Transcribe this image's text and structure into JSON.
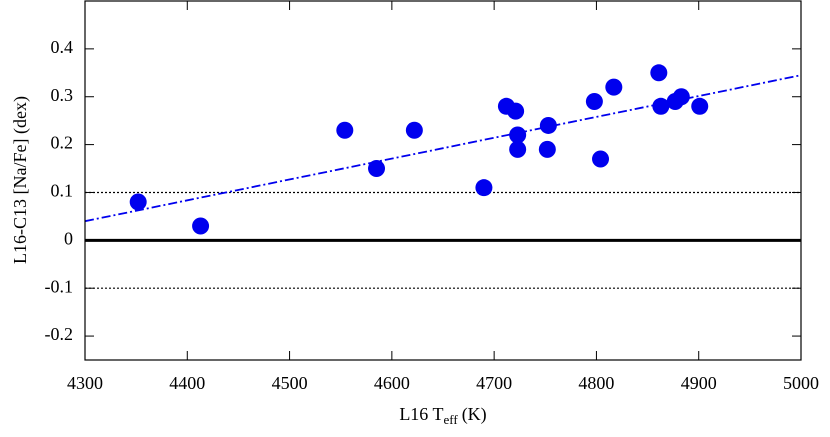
{
  "chart_data": {
    "type": "scatter",
    "x_label": {
      "prefix": "L16 T",
      "sub": "eff",
      "suffix": "(K)"
    },
    "y_label": "L16-C13 [Na/Fe] (dex)",
    "x": [
      4352,
      4413,
      4554,
      4585,
      4622,
      4690,
      4712,
      4721,
      4723,
      4723,
      4752,
      4753,
      4798,
      4804,
      4817,
      4861,
      4863,
      4877,
      4883,
      4901
    ],
    "y": [
      0.08,
      0.03,
      0.23,
      0.15,
      0.23,
      0.11,
      0.28,
      0.27,
      0.22,
      0.19,
      0.19,
      0.24,
      0.29,
      0.17,
      0.32,
      0.35,
      0.28,
      0.29,
      0.3,
      0.28
    ],
    "color": "#0000ee",
    "fit": {
      "x": [
        4300,
        5000
      ],
      "y": [
        0.04,
        0.345
      ],
      "color": "#0000ee"
    },
    "hlines": [
      {
        "value": 0,
        "style": "solid"
      },
      {
        "value": 0.1,
        "style": "dotted"
      },
      {
        "value": -0.1,
        "style": "dotted"
      }
    ],
    "xlim": [
      4300,
      5000
    ],
    "xticks": [
      4300,
      4400,
      4500,
      4600,
      4700,
      4800,
      4900,
      5000
    ],
    "ylim": [
      -0.25,
      0.5
    ],
    "yticks": [
      -0.2,
      -0.1,
      0,
      0.1,
      0.2,
      0.3,
      0.4
    ],
    "grid": false
  }
}
